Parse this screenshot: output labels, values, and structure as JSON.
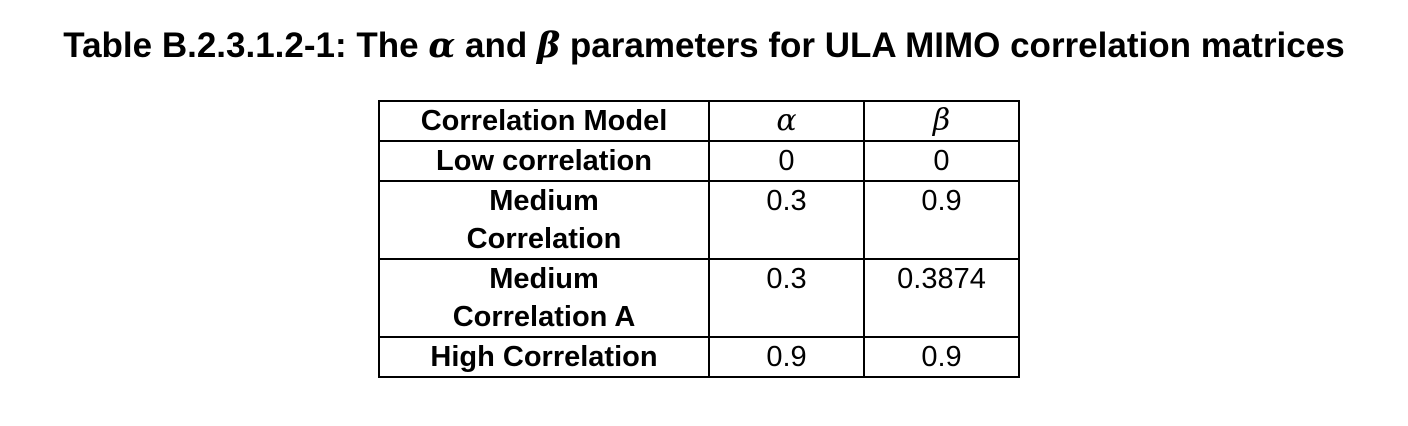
{
  "caption": {
    "prefix": "Table B.2.3.1.2-1: The ",
    "alpha": "α",
    "middle": " and ",
    "beta": "β",
    "suffix": " parameters for ULA MIMO correlation matrices"
  },
  "table": {
    "headers": [
      "Correlation Model",
      "α",
      "β"
    ],
    "rows": [
      {
        "model_line1": "Low correlation",
        "model_line2": "",
        "alpha": "0",
        "beta": "0"
      },
      {
        "model_line1": "Medium",
        "model_line2": "Correlation",
        "alpha": "0.3",
        "beta": "0.9"
      },
      {
        "model_line1": "Medium",
        "model_line2": "Correlation A",
        "alpha": "0.3",
        "beta": "0.3874"
      },
      {
        "model_line1": "High Correlation",
        "model_line2": "",
        "alpha": "0.9",
        "beta": "0.9"
      }
    ]
  }
}
